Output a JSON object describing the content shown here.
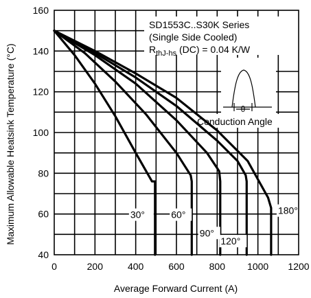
{
  "chart_data": {
    "type": "line",
    "xlabel": "Average Forward Current (A)",
    "ylabel": "Maximum Allowable Heatsink Temperature (°C)",
    "xlim": [
      0,
      1200
    ],
    "ylim": [
      40,
      160
    ],
    "x_ticks": [
      0,
      200,
      400,
      600,
      800,
      1000,
      1200
    ],
    "y_ticks": [
      40,
      60,
      80,
      100,
      120,
      140,
      160
    ],
    "grid": true,
    "annotations": {
      "line1": "SD1553C..S30K Series",
      "line2": "(Single Side Cooled)",
      "rth_main": "R",
      "rth_sub": "thJ-hs",
      "rth_rest": " (DC) = 0.04 K/W",
      "inset_label": "Conduction Angle",
      "inset_symbol": "θ"
    },
    "series": [
      {
        "name": "30°",
        "x": [
          0,
          100,
          200,
          300,
          400,
          480,
          495,
          495
        ],
        "y": [
          150,
          138,
          124,
          108,
          90,
          76,
          76,
          40
        ]
      },
      {
        "name": "60°",
        "x": [
          0,
          150,
          300,
          450,
          600,
          670,
          675,
          675
        ],
        "y": [
          150,
          139,
          125,
          109,
          90,
          79,
          76,
          40
        ]
      },
      {
        "name": "90°",
        "x": [
          0,
          200,
          400,
          600,
          750,
          810,
          815,
          815
        ],
        "y": [
          150,
          138,
          124,
          106,
          90,
          81,
          76,
          40
        ]
      },
      {
        "name": "120°",
        "x": [
          0,
          200,
          400,
          600,
          800,
          900,
          940,
          945,
          945
        ],
        "y": [
          150,
          139,
          127,
          113,
          96,
          86,
          79,
          76,
          40
        ]
      },
      {
        "name": "180°",
        "x": [
          0,
          200,
          400,
          600,
          800,
          950,
          1050,
          1065,
          1065
        ],
        "y": [
          150,
          140,
          129,
          117,
          101,
          86,
          68,
          63,
          40
        ]
      }
    ]
  }
}
